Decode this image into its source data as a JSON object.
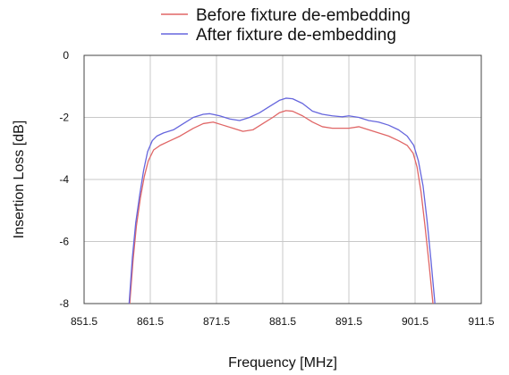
{
  "chart_data": {
    "type": "line",
    "title": "",
    "xlabel": "Frequency [MHz]",
    "ylabel": "Insertion Loss [dB]",
    "xlim": [
      851.5,
      911.5
    ],
    "ylim": [
      -8,
      0
    ],
    "xticks": [
      851.5,
      861.5,
      871.5,
      881.5,
      891.5,
      901.5,
      911.5
    ],
    "yticks": [
      0,
      -2,
      -4,
      -6,
      -8
    ],
    "xtick_labels": [
      "851.5",
      "861.5",
      "871.5",
      "881.5",
      "891.5",
      "901.5",
      "911.5"
    ],
    "ytick_labels": [
      "0",
      "-2",
      "-4",
      "-6",
      "-8"
    ],
    "grid": true,
    "legend": "top-right",
    "series": [
      {
        "name": "Before fixture de-embedding",
        "color": "#e06666",
        "x": [
          858.4,
          858.9,
          859.4,
          860.0,
          860.6,
          861.2,
          862.0,
          863.0,
          864.5,
          866.0,
          868.0,
          869.5,
          871.0,
          872.5,
          874.0,
          875.5,
          877.0,
          878.5,
          880.0,
          881.0,
          882.0,
          883.0,
          884.5,
          886.0,
          887.5,
          889.0,
          890.5,
          891.5,
          893.0,
          894.5,
          896.0,
          897.5,
          899.0,
          900.3,
          901.2,
          901.8,
          902.4,
          903.0,
          903.6,
          904.2
        ],
        "y": [
          -8.0,
          -6.6,
          -5.5,
          -4.6,
          -3.9,
          -3.4,
          -3.05,
          -2.9,
          -2.75,
          -2.6,
          -2.35,
          -2.2,
          -2.15,
          -2.25,
          -2.35,
          -2.45,
          -2.4,
          -2.2,
          -2.0,
          -1.85,
          -1.78,
          -1.8,
          -1.95,
          -2.15,
          -2.3,
          -2.35,
          -2.35,
          -2.35,
          -2.3,
          -2.4,
          -2.5,
          -2.6,
          -2.75,
          -2.9,
          -3.15,
          -3.6,
          -4.4,
          -5.5,
          -6.7,
          -8.0
        ]
      },
      {
        "name": "After fixture de-embedding",
        "color": "#6666dd",
        "x": [
          858.3,
          858.8,
          859.3,
          859.9,
          860.5,
          861.1,
          861.8,
          862.5,
          863.5,
          865.0,
          866.5,
          868.0,
          869.5,
          870.5,
          872.0,
          873.5,
          875.0,
          876.5,
          878.0,
          879.5,
          881.0,
          882.0,
          883.0,
          884.5,
          886.0,
          887.5,
          889.0,
          890.5,
          891.5,
          893.0,
          894.5,
          896.0,
          897.5,
          899.0,
          900.3,
          901.3,
          902.0,
          902.7,
          903.3,
          903.9,
          904.5
        ],
        "y": [
          -8.0,
          -6.5,
          -5.4,
          -4.5,
          -3.7,
          -3.1,
          -2.75,
          -2.6,
          -2.5,
          -2.4,
          -2.2,
          -2.0,
          -1.9,
          -1.88,
          -1.95,
          -2.05,
          -2.1,
          -2.0,
          -1.85,
          -1.65,
          -1.45,
          -1.38,
          -1.4,
          -1.55,
          -1.8,
          -1.9,
          -1.95,
          -1.98,
          -1.95,
          -2.0,
          -2.1,
          -2.15,
          -2.25,
          -2.4,
          -2.6,
          -2.9,
          -3.4,
          -4.2,
          -5.3,
          -6.6,
          -8.0
        ]
      }
    ]
  }
}
